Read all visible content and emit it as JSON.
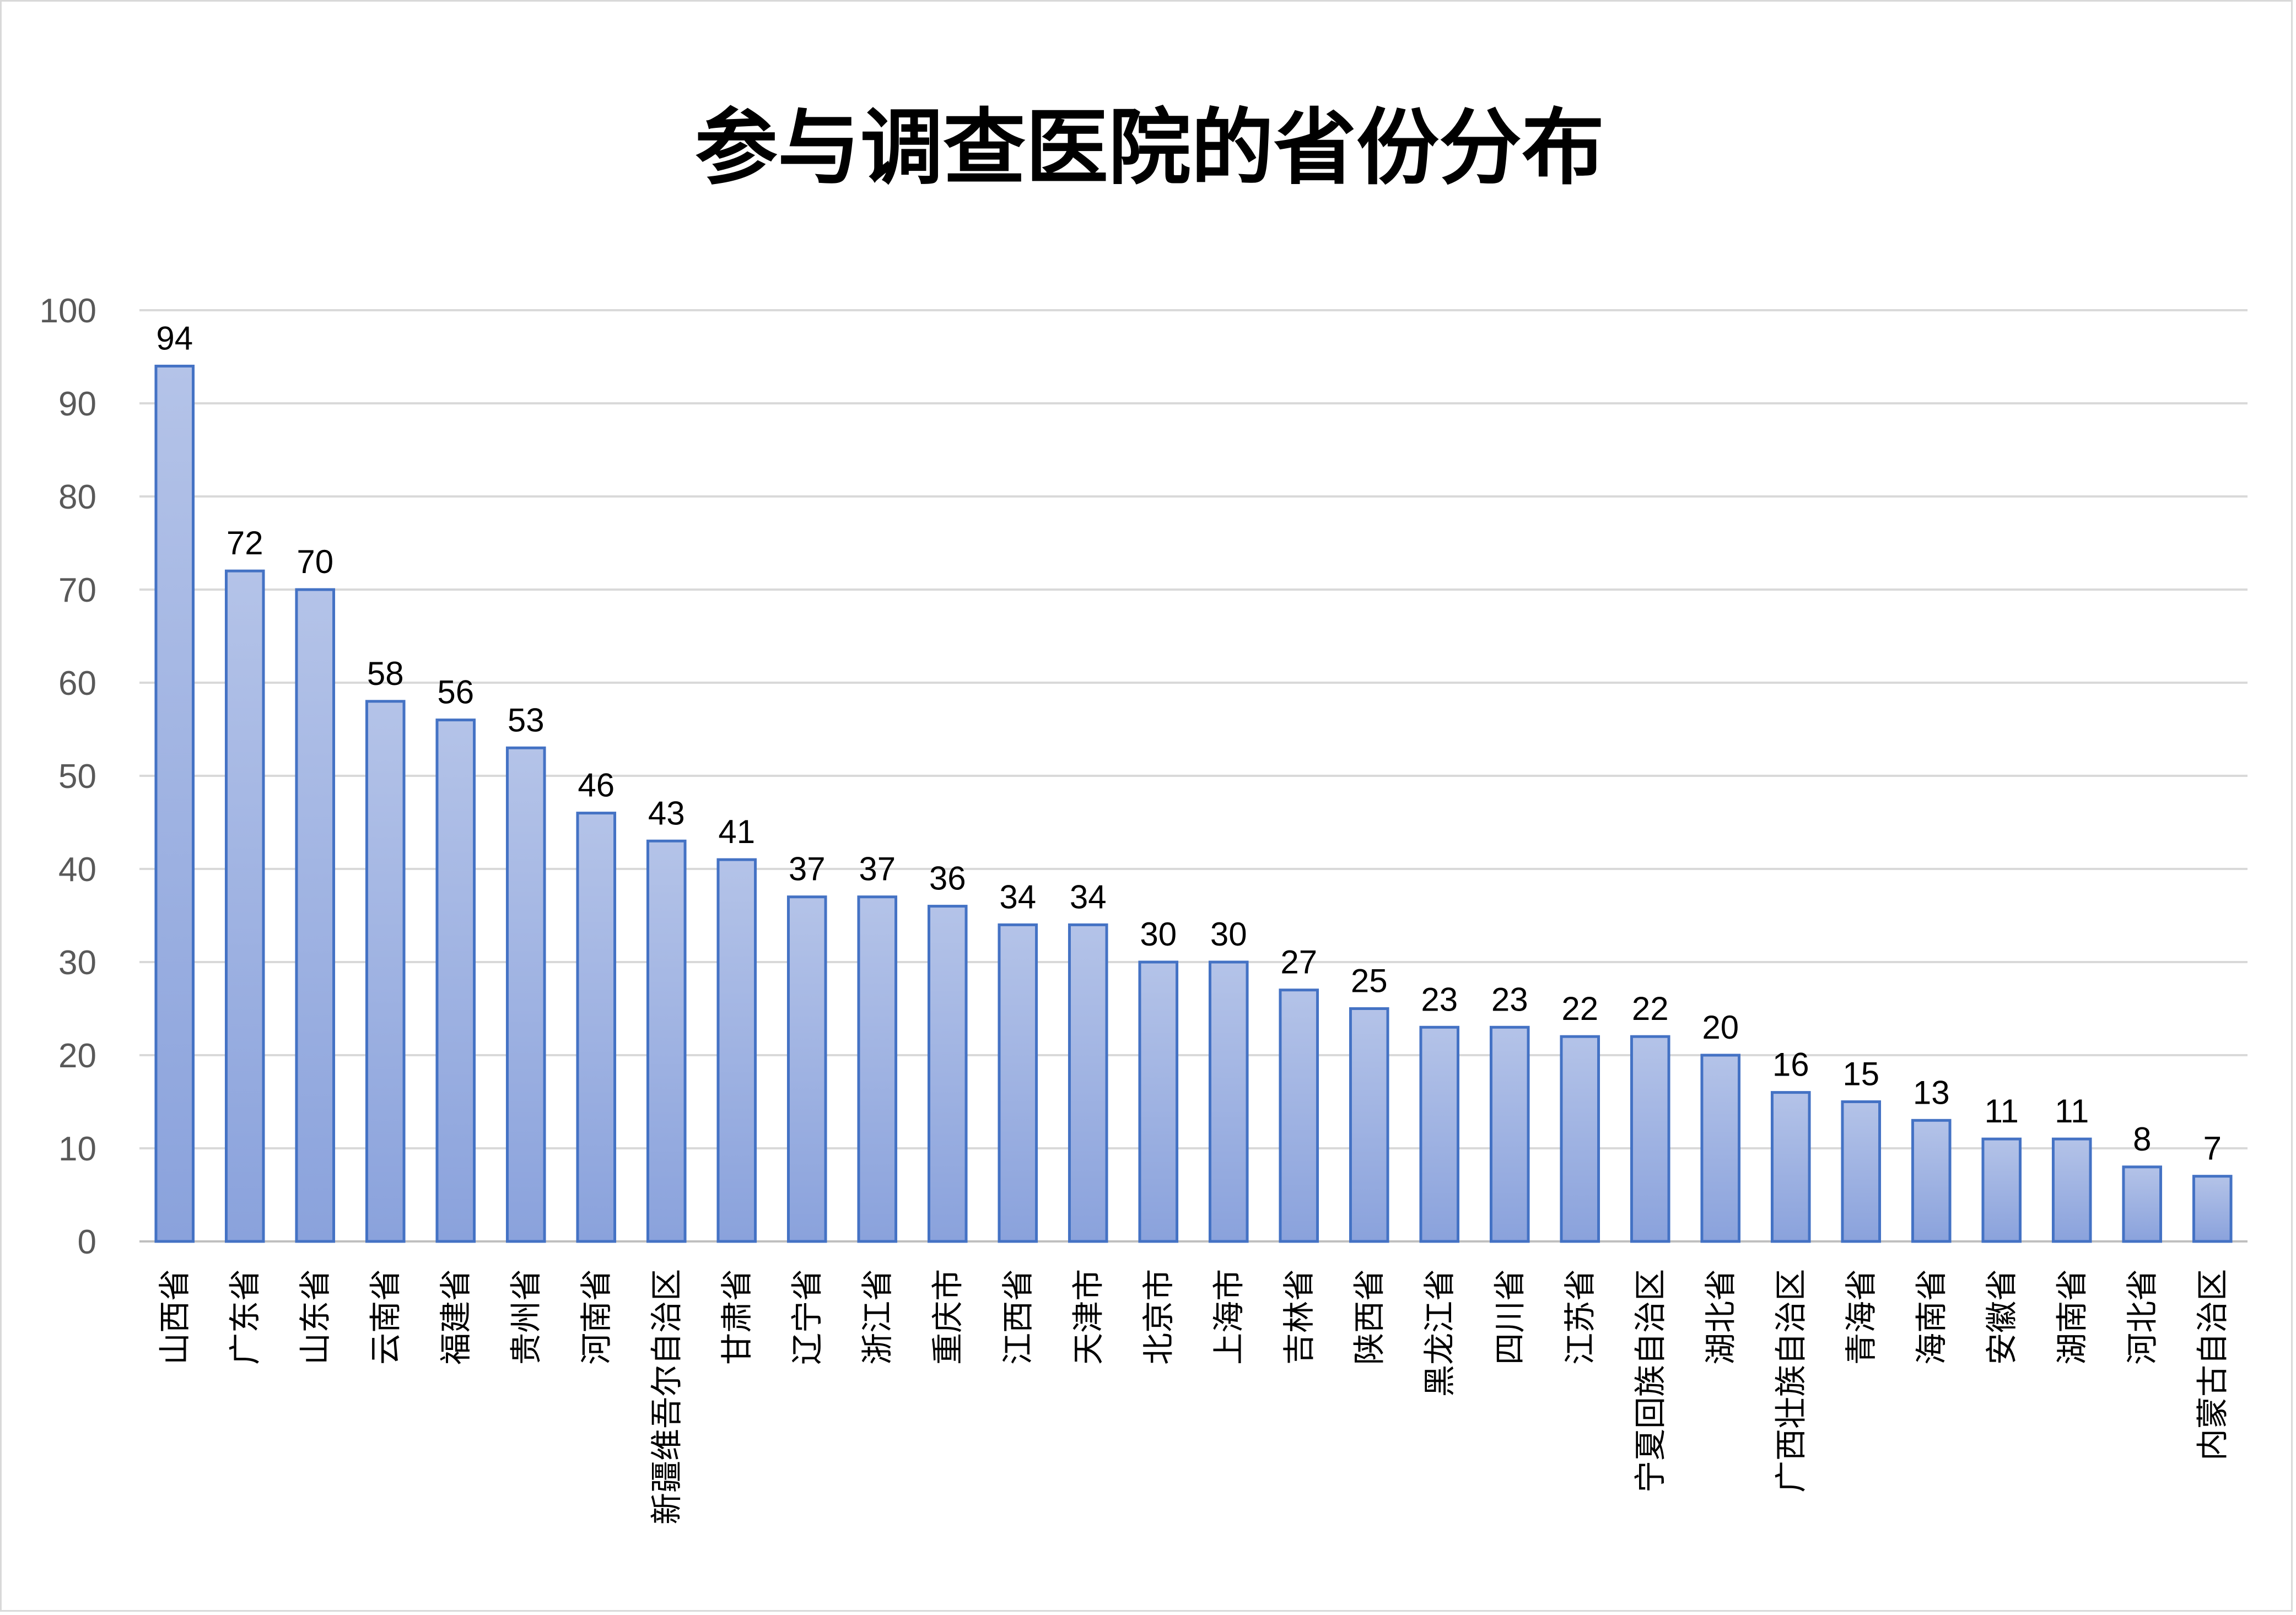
{
  "chart_data": {
    "type": "bar",
    "title": "参与调查医院的省份分布",
    "xlabel": "",
    "ylabel": "",
    "ylim": [
      0,
      100
    ],
    "yticks": [
      0,
      10,
      20,
      30,
      40,
      50,
      60,
      70,
      80,
      90,
      100
    ],
    "grid": true,
    "legend": "none",
    "bar_color": "#8ea5dc",
    "bar_edge_color": "#4472c4",
    "categories": [
      "山西省",
      "广东省",
      "山东省",
      "云南省",
      "福建省",
      "贵州省",
      "河南省",
      "新疆维吾尔自治区",
      "甘肃省",
      "辽宁省",
      "浙江省",
      "重庆市",
      "江西省",
      "天津市",
      "北京市",
      "上海市",
      "吉林省",
      "陕西省",
      "黑龙江省",
      "四川省",
      "江苏省",
      "宁夏回族自治区",
      "湖北省",
      "广西壮族自治区",
      "青海省",
      "海南省",
      "安徽省",
      "湖南省",
      "河北省",
      "内蒙古自治区"
    ],
    "values": [
      94,
      72,
      70,
      58,
      56,
      53,
      46,
      43,
      41,
      37,
      37,
      36,
      34,
      34,
      30,
      30,
      27,
      25,
      23,
      23,
      22,
      22,
      20,
      16,
      15,
      13,
      11,
      11,
      8,
      7
    ]
  }
}
